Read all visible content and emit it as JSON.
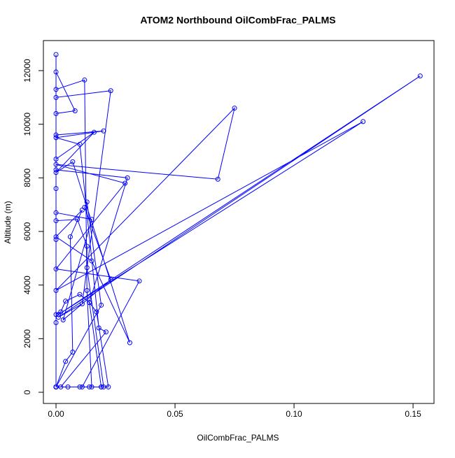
{
  "chart_data": {
    "type": "line",
    "title": "ATOM2 Northbound OilCombFrac_PALMS",
    "x_label": "OilCombFrac_PALMS",
    "y_label": "Altitude (m)",
    "color": "#0000ff",
    "markers": true,
    "x": [
      0,
      0,
      0,
      0.002,
      0.004,
      0.01,
      0.014,
      0.019,
      0,
      0,
      0,
      0.009,
      0.013,
      0.013,
      0.02,
      0,
      0,
      0,
      0.03,
      0.014,
      0.017,
      0.022,
      0,
      0,
      0.012,
      0.013,
      0.015,
      0,
      0,
      0.02,
      0,
      0.01,
      0.018,
      0.021,
      0.002,
      0,
      0,
      0.008,
      0,
      0,
      0,
      0.023,
      0.011,
      0.001,
      0.153,
      0.001,
      0.129,
      0,
      0.075,
      0.068,
      0,
      0.029,
      0,
      0.035,
      0.011,
      0,
      0,
      0.015,
      0.003,
      0.023,
      0.012,
      0.013,
      0.019,
      0,
      0,
      0.016,
      0,
      0.007,
      0.031,
      0.015,
      0,
      0.011,
      0.006,
      0.007,
      0.004,
      0,
      0.005,
      0.01,
      0.014,
      0.019
    ],
    "values": [
      200,
      2600,
      2900,
      3000,
      3400,
      3650,
      3350,
      200,
      200,
      5700,
      6400,
      6450,
      5450,
      4650,
      200,
      200,
      7600,
      8300,
      8000,
      3350,
      3000,
      200,
      200,
      11300,
      11650,
      3800,
      200,
      200,
      9600,
      9750,
      9500,
      9250,
      2400,
      2250,
      200,
      200,
      10400,
      10500,
      11950,
      12600,
      11000,
      11250,
      3300,
      2800,
      11800,
      2900,
      10100,
      3800,
      10600,
      7950,
      8500,
      7800,
      4600,
      4150,
      200,
      200,
      6700,
      6450,
      2700,
      4200,
      6900,
      7100,
      3250,
      200,
      8700,
      9700,
      8200,
      8600,
      1850,
      4900,
      5800,
      6800,
      5800,
      1500,
      1150,
      200,
      200,
      200,
      200,
      200
    ],
    "xlim": [
      -0.0053,
      0.1588
    ],
    "ylim": [
      -417,
      13122
    ],
    "xticks": [
      {
        "value": 0,
        "label": "0.00"
      },
      {
        "value": 0.05,
        "label": "0.05"
      },
      {
        "value": 0.1,
        "label": "0.10"
      },
      {
        "value": 0.15,
        "label": "0.15"
      }
    ],
    "yticks": [
      0,
      2000,
      4000,
      6000,
      8000,
      10000,
      12000
    ]
  }
}
